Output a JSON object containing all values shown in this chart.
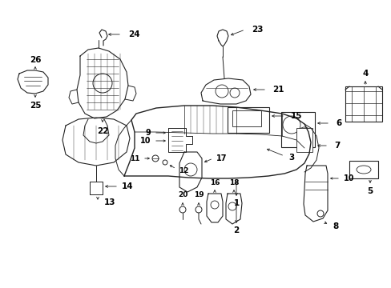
{
  "bg_color": "#ffffff",
  "line_color": "#222222",
  "text_color": "#000000",
  "figsize": [
    4.89,
    3.6
  ],
  "dpi": 100,
  "arrow_lw": 0.6,
  "part_lw": 0.7
}
